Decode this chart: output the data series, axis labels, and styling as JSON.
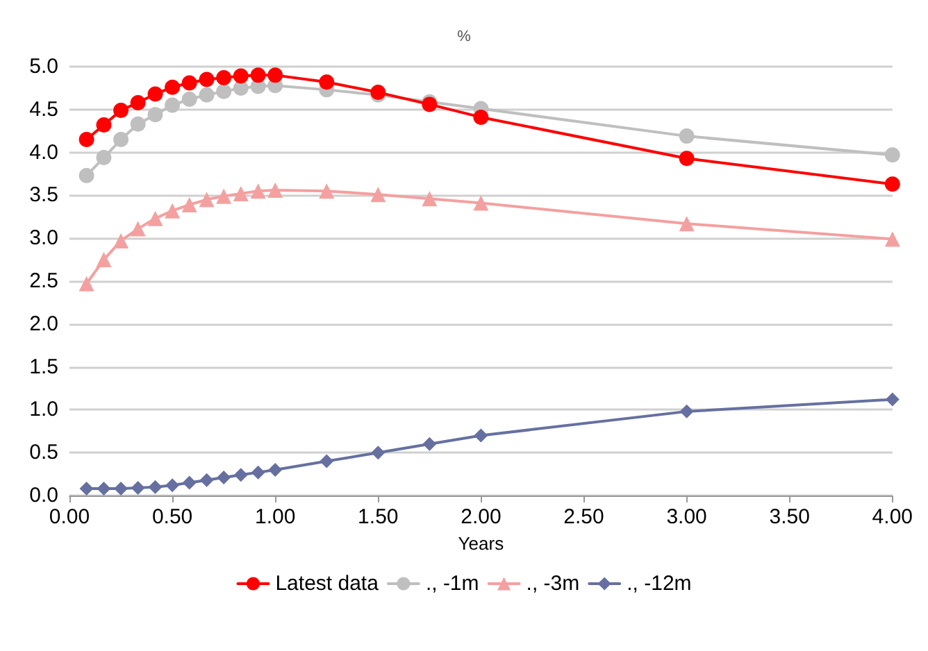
{
  "chart_data": {
    "type": "line",
    "title": "%",
    "xlabel": "Years",
    "x": [
      0.083,
      0.167,
      0.25,
      0.333,
      0.417,
      0.5,
      0.583,
      0.667,
      0.75,
      0.833,
      0.917,
      1.0,
      1.25,
      1.5,
      1.75,
      2.0,
      3.0,
      4.0
    ],
    "series": [
      {
        "name": "Latest data",
        "color": "#ff0000",
        "marker": "circle",
        "values": [
          4.15,
          4.32,
          4.49,
          4.58,
          4.68,
          4.76,
          4.81,
          4.85,
          4.87,
          4.89,
          4.9,
          4.9,
          4.82,
          4.7,
          4.56,
          4.41,
          3.93,
          3.63
        ]
      },
      {
        "name": "., -1m",
        "color": "#bfbfbf",
        "marker": "circle",
        "values": [
          3.73,
          3.94,
          4.15,
          4.33,
          4.44,
          4.55,
          4.62,
          4.67,
          4.71,
          4.75,
          4.77,
          4.78,
          4.73,
          4.67,
          4.59,
          4.51,
          4.19,
          3.97
        ]
      },
      {
        "name": "., -3m",
        "color": "#f4a0a0",
        "marker": "triangle",
        "values": [
          2.47,
          2.75,
          2.97,
          3.11,
          3.23,
          3.32,
          3.39,
          3.45,
          3.49,
          3.52,
          3.55,
          3.56,
          3.55,
          3.51,
          3.46,
          3.41,
          3.17,
          2.99
        ]
      },
      {
        "name": "., -12m",
        "color": "#6670a0",
        "marker": "diamond",
        "values": [
          0.08,
          0.08,
          0.08,
          0.09,
          0.1,
          0.12,
          0.15,
          0.18,
          0.21,
          0.24,
          0.27,
          0.3,
          0.4,
          0.5,
          0.6,
          0.7,
          0.98,
          1.12
        ]
      }
    ],
    "xlim": [
      0,
      4
    ],
    "xticks": [
      {
        "value": 0,
        "label": "0.00"
      },
      {
        "value": 0.5,
        "label": "0.50"
      },
      {
        "value": 1,
        "label": "1.00"
      },
      {
        "value": 1.5,
        "label": "1.50"
      },
      {
        "value": 2,
        "label": "2.00"
      },
      {
        "value": 2.5,
        "label": "2.50"
      },
      {
        "value": 3,
        "label": "3.00"
      },
      {
        "value": 3.5,
        "label": "3.50"
      },
      {
        "value": 4,
        "label": "4.00"
      }
    ],
    "ylim": [
      0,
      5
    ],
    "yticks": [
      {
        "value": 0,
        "label": "0.0"
      },
      {
        "value": 0.5,
        "label": "0.5"
      },
      {
        "value": 1,
        "label": "1.0"
      },
      {
        "value": 1.5,
        "label": "1.5"
      },
      {
        "value": 2,
        "label": "2.0"
      },
      {
        "value": 2.5,
        "label": "2.5"
      },
      {
        "value": 3,
        "label": "3.0"
      },
      {
        "value": 3.5,
        "label": "3.5"
      },
      {
        "value": 4,
        "label": "4.0"
      },
      {
        "value": 4.5,
        "label": "4.5"
      },
      {
        "value": 5,
        "label": "5.0"
      }
    ],
    "grid": "y",
    "legend": "bottom",
    "line_style": "solid"
  }
}
